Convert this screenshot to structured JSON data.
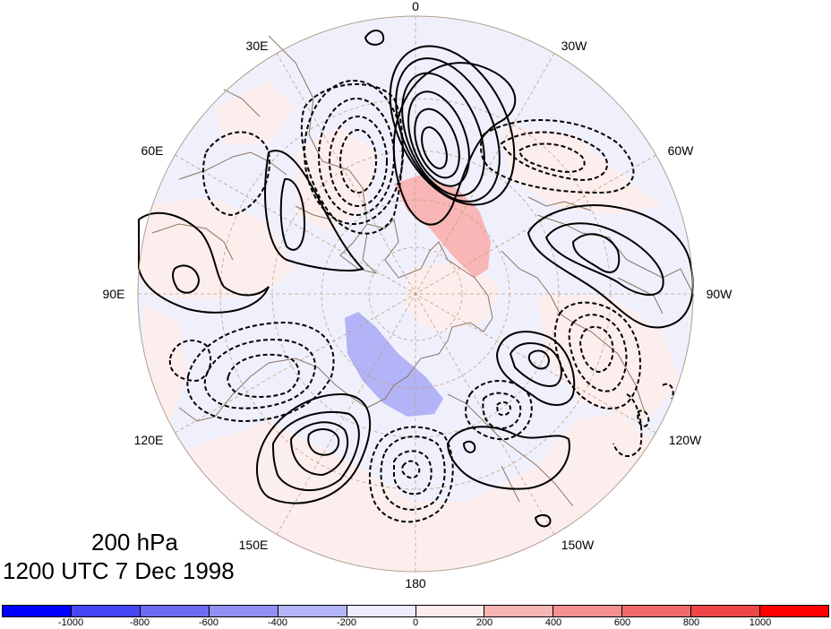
{
  "map": {
    "projection": "north-polar-stereographic",
    "longitude_labels": {
      "top": "0",
      "upper_left_1": "30E",
      "upper_right_1": "30W",
      "upper_left_2": "60E",
      "upper_right_2": "60W",
      "left": "90E",
      "right": "90W",
      "lower_left_2": "120E",
      "lower_right_2": "120W",
      "lower_left_1": "150E",
      "lower_right_1": "150W",
      "bottom": "180"
    },
    "contour_style": {
      "positive": "solid black",
      "negative": "dashed black"
    },
    "coastline_color": "#8a7560",
    "grid_color": "#c2a382"
  },
  "title": {
    "level": "200 hPa",
    "time": "1200 UTC 7 Dec 1998"
  },
  "colorbar": {
    "colors": [
      "#0000ff",
      "#4646f5",
      "#6b6bf3",
      "#9090f6",
      "#b4b4fa",
      "#ececfd",
      "#fdecec",
      "#f9b4b4",
      "#f59090",
      "#f06b6b",
      "#ed4646",
      "#ff0000"
    ],
    "tick_labels": [
      "-1000",
      "-800",
      "-600",
      "-400",
      "-200",
      "0",
      "200",
      "400",
      "600",
      "800",
      "1000"
    ]
  }
}
